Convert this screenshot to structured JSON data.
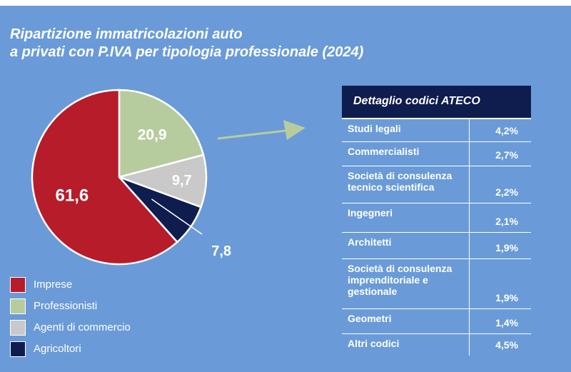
{
  "title": {
    "line1": "Ripartizione immatricolazioni auto",
    "line2": "a privati con P.IVA per tipologia professionale (2024)"
  },
  "chart_data": {
    "type": "pie",
    "title": "Ripartizione immatricolazioni auto a privati con P.IVA per tipologia professionale (2024)",
    "categories": [
      "Imprese",
      "Professionisti",
      "Agenti di commercio",
      "Agricoltori"
    ],
    "values": [
      61.6,
      20.9,
      9.7,
      7.8
    ],
    "value_labels": [
      "61,6",
      "20,9",
      "9,7",
      "7,8"
    ],
    "colors": [
      "#b71c2a",
      "#b7cc9e",
      "#c9c9c9",
      "#0f1d4e"
    ],
    "legend": "bottom-left"
  },
  "legend_items": [
    {
      "label": "Imprese",
      "color": "#b71c2a"
    },
    {
      "label": "Professionisti",
      "color": "#b7cc9e"
    },
    {
      "label": "Agenti di commercio",
      "color": "#c9c9c9"
    },
    {
      "label": "Agricoltori",
      "color": "#0f1d4e"
    }
  ],
  "ateco_table": {
    "header": "Dettaglio codici ATECO",
    "rows": [
      {
        "name": "Studi legali",
        "value": "4,2%"
      },
      {
        "name": "Commercialisti",
        "value": "2,7%"
      },
      {
        "name": "Società di consulenza tecnico scientifica",
        "value": "2,2%"
      },
      {
        "name": "Ingegneri",
        "value": "2,1%"
      },
      {
        "name": "Architetti",
        "value": "1,9%"
      },
      {
        "name": "Società di consulenza imprenditoriale e gestionale",
        "value": "1,9%"
      },
      {
        "name": "Geometri",
        "value": "1,4%"
      },
      {
        "name": "Altri codici",
        "value": "4,5%"
      }
    ]
  },
  "colors": {
    "background": "#6a9bd8",
    "arrow": "#b7cc9e",
    "header": "#0f1d4e"
  }
}
